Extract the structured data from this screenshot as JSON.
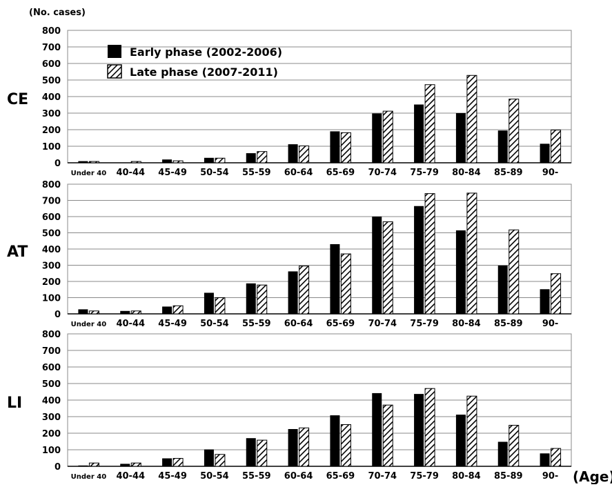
{
  "y_unit_label": "(No. cases)",
  "x_unit_label": "(Age)",
  "legend": {
    "early_label": "Early phase (2002-2006)",
    "late_label": "Late phase (2007-2011)"
  },
  "colors": {
    "early_fill": "#000000",
    "late_hatch": "#000000",
    "late_background": "#ffffff",
    "grid": "#888888",
    "axis": "#000000"
  },
  "chart_data": [
    {
      "type": "bar",
      "panel_label": "CE",
      "categories": [
        "Under 40",
        "40-44",
        "45-49",
        "50-54",
        "55-59",
        "60-64",
        "65-69",
        "70-74",
        "75-79",
        "80-84",
        "85-89",
        "90-"
      ],
      "series": [
        {
          "name": "Early phase (2002-2006)",
          "values": [
            10,
            2,
            20,
            30,
            58,
            112,
            190,
            298,
            352,
            300,
            195,
            115
          ]
        },
        {
          "name": "Late phase (2007-2011)",
          "values": [
            8,
            8,
            12,
            28,
            68,
            102,
            182,
            312,
            472,
            528,
            385,
            198
          ]
        }
      ],
      "ylim": [
        0,
        800
      ],
      "yticks": [
        0,
        100,
        200,
        300,
        400,
        500,
        600,
        700,
        800
      ],
      "grid": true,
      "legend_position": "top-left"
    },
    {
      "type": "bar",
      "panel_label": "AT",
      "categories": [
        "Under 40",
        "40-44",
        "45-49",
        "50-54",
        "55-59",
        "60-64",
        "65-69",
        "70-74",
        "75-79",
        "80-84",
        "85-89",
        "90-"
      ],
      "series": [
        {
          "name": "Early phase (2002-2006)",
          "values": [
            28,
            18,
            45,
            130,
            188,
            262,
            430,
            600,
            665,
            515,
            298,
            152
          ]
        },
        {
          "name": "Late phase (2007-2011)",
          "values": [
            18,
            18,
            50,
            100,
            178,
            295,
            370,
            568,
            742,
            745,
            518,
            248
          ]
        }
      ],
      "ylim": [
        0,
        800
      ],
      "yticks": [
        0,
        100,
        200,
        300,
        400,
        500,
        600,
        700,
        800
      ],
      "grid": true
    },
    {
      "type": "bar",
      "panel_label": "LI",
      "categories": [
        "Under 40",
        "40-44",
        "45-49",
        "50-54",
        "55-59",
        "60-64",
        "65-69",
        "70-74",
        "75-79",
        "80-84",
        "85-89",
        "90-"
      ],
      "series": [
        {
          "name": "Early phase (2002-2006)",
          "values": [
            5,
            15,
            48,
            102,
            170,
            225,
            308,
            442,
            437,
            312,
            148,
            78
          ]
        },
        {
          "name": "Late phase (2007-2011)",
          "values": [
            20,
            20,
            48,
            72,
            158,
            232,
            252,
            370,
            470,
            424,
            248,
            108
          ]
        }
      ],
      "ylim": [
        0,
        800
      ],
      "yticks": [
        0,
        100,
        200,
        300,
        400,
        500,
        600,
        700,
        800
      ],
      "grid": true
    }
  ]
}
